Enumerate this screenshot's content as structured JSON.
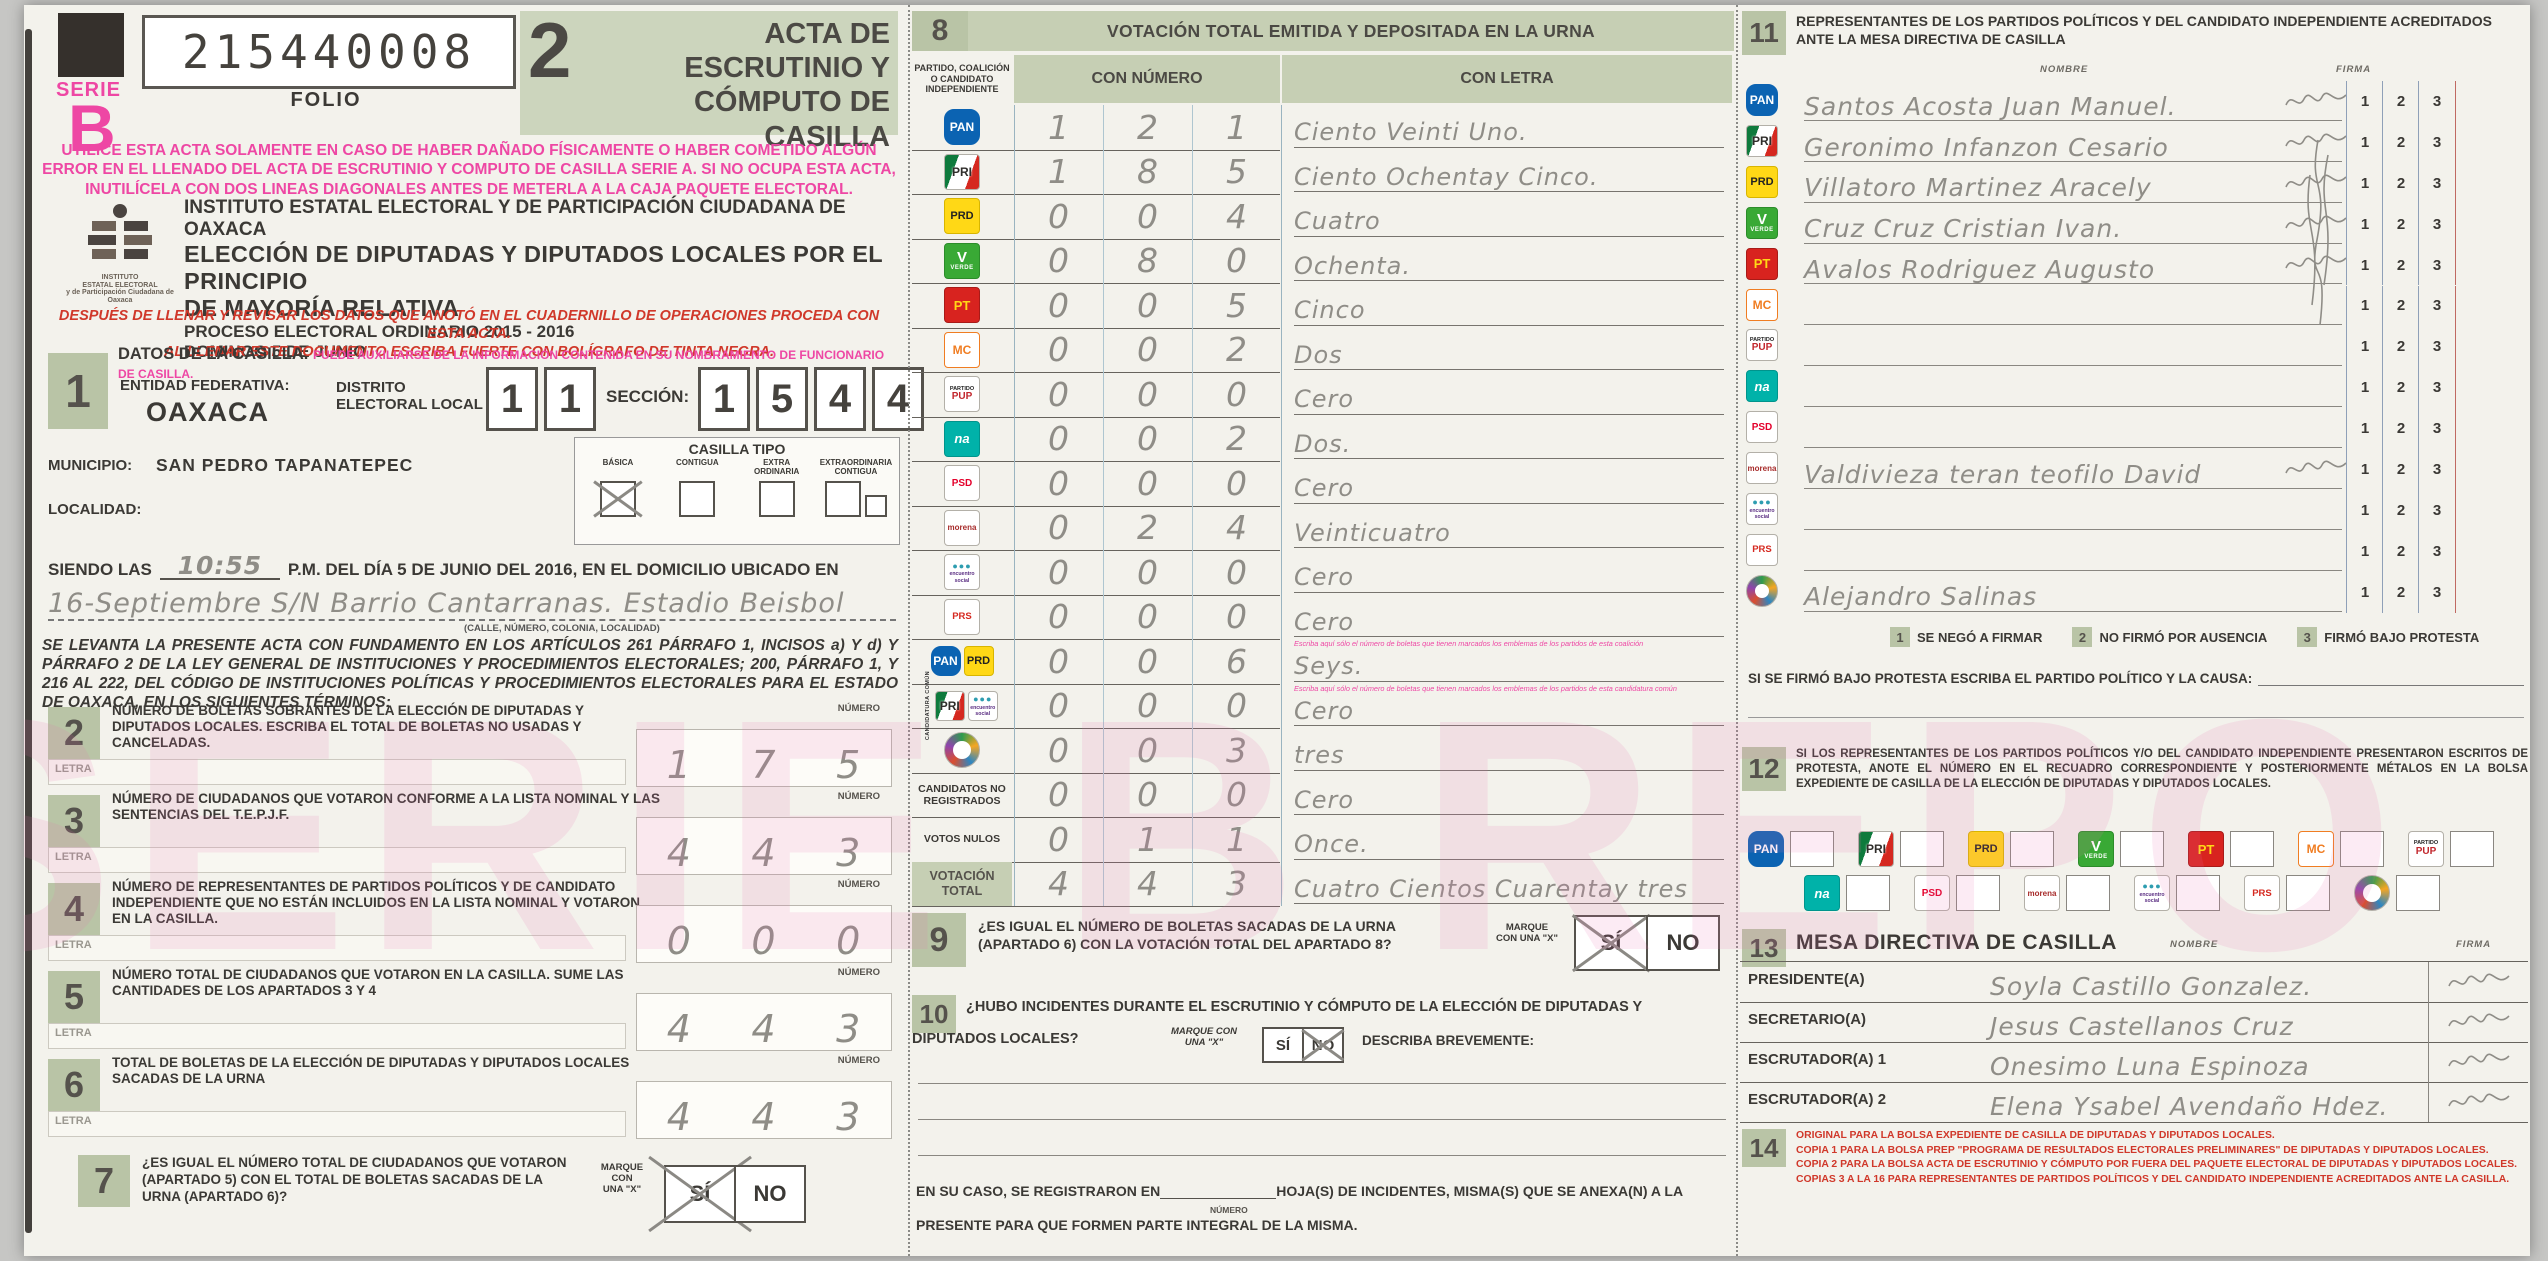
{
  "meta": {
    "serie_label": "SERIE",
    "serie_letter": "B",
    "folio_number": "215440008",
    "folio_label": "FOLIO",
    "form_number": "2",
    "form_title": "ACTA DE\nESCRUTINIO Y\nCÓMPUTO DE CASILLA",
    "watermark": "SERIE B REPO"
  },
  "warning_pink": "UTILICE ESTA ACTA SOLAMENTE EN CASO DE HABER DAÑADO FÍSICAMENTE O HABER COMETIDO ALGÚN ERROR EN EL LLENADO DEL ACTA DE ESCRUTINIO Y COMPUTO DE CASILLA SERIE A. SI NO OCUPA ESTA ACTA, INUTILÍCELA CON DOS LINEAS DIAGONALES ANTES DE METERLA A LA CAJA PAQUETE ELECTORAL.",
  "institute": {
    "logo_caption": "INSTITUTO\nESTATAL ELECTORAL\ny de Participación Ciudadana de Oaxaca",
    "name": "INSTITUTO ESTATAL ELECTORAL Y DE PARTICIPACIÓN CIUDADANA DE OAXACA",
    "election_line1": "ELECCIÓN DE DIPUTADAS Y DIPUTADOS LOCALES POR EL PRINCIPIO",
    "election_line2": "DE MAYORÍA RELATIVA",
    "process": "PROCESO ELECTORAL ORDINARIO 2015 - 2016",
    "date": "DOMINGO 5 DE JUNIO",
    "red_note1": "DESPUÉS DE LLENAR Y REVISAR LOS DATOS QUE ANOTÓ EN EL CUADERNILLO DE OPERACIONES PROCEDA CON ESTA ACTA.",
    "red_note2": "AL LLENAR ESTE DOCUMENTO ESCRIBA FUERTE CON BOLÍGRAFO DE TINTA NEGRA."
  },
  "labels": {
    "numero": "NÚMERO",
    "letra": "LETRA"
  },
  "section1": {
    "num": "1",
    "title": "DATOS DE LA CASILLA.",
    "title_pink": "PUEDE AUXILIARSE DE LA INFORMACIÓN CONTENIDA EN SU NOMBRAMIENTO DE FUNCIONARIO DE CASILLA.",
    "entidad_label": "ENTIDAD FEDERATIVA:",
    "entidad": "OAXACA",
    "distrito_label": "DISTRITO\nELECTORAL LOCAL",
    "distrito_digits": "11",
    "seccion_label": "SECCIÓN:",
    "seccion_digits": "1544",
    "municipio_label": "MUNICIPIO:",
    "municipio": "SAN PEDRO TAPANATEPEC",
    "casilla_tipo_label": "CASILLA TIPO",
    "tipos": [
      {
        "label": "BÁSICA",
        "marked": true
      },
      {
        "label": "CONTIGUA",
        "marked": false
      },
      {
        "label": "EXTRA ORDINARIA",
        "marked": false
      },
      {
        "label": "EXTRAORDINARIA CONTIGUA",
        "marked": false,
        "small": true
      }
    ],
    "localidad_label": "LOCALIDAD:"
  },
  "siendo": {
    "prefix": "SIENDO LAS",
    "time": "10:55",
    "suffix": "P.M. DEL DÍA 5 DE JUNIO DEL 2016, EN EL DOMICILIO UBICADO EN",
    "address": "16-Septiembre S/N Barrio Cantarranas. Estadio Beisbol",
    "address_caption": "(CALLE, NÚMERO, COLONIA, LOCALIDAD)"
  },
  "legal": "SE LEVANTA LA PRESENTE ACTA CON FUNDAMENTO EN LOS ARTÍCULOS 261 PÁRRAFO 1, INCISOS a) Y d) Y PÁRRAFO 2 DE LA LEY GENERAL DE INSTITUCIONES Y PROCEDIMIENTOS ELECTORALES; 200, PÁRRAFO 1, Y 216 AL 222,  DEL CÓDIGO DE INSTITUCIONES POLÍTICAS Y PROCEDIMIENTOS ELECTORALES PARA EL ESTADO DE OAXACA, EN LOS SIGUIENTES TÉRMINOS:",
  "apartados": [
    {
      "num": "2",
      "text": "NÚMERO DE BOLETAS SOBRANTES DE LA ELECCIÓN DE DIPUTADAS Y DIPUTADOS LOCALES. ESCRIBA EL TOTAL DE BOLETAS NO USADAS Y CANCELADAS.",
      "value": "175"
    },
    {
      "num": "3",
      "text": "NÚMERO DE CIUDADANOS QUE VOTARON CONFORME A LA LISTA NOMINAL Y LAS SENTENCIAS DEL T.E.P.J.F.",
      "value": "443"
    },
    {
      "num": "4",
      "text": "NÚMERO DE REPRESENTANTES DE PARTIDOS POLÍTICOS Y DE CANDIDATO INDEPENDIENTE QUE NO ESTÁN INCLUIDOS EN LA LISTA NOMINAL Y VOTARON EN LA CASILLA.",
      "value": "000"
    },
    {
      "num": "5",
      "text": "NÚMERO TOTAL DE CIUDADANOS QUE VOTARON EN LA CASILLA. SUME LAS CANTIDADES DE LOS APARTADOS 3 Y 4",
      "value": "443"
    },
    {
      "num": "6",
      "text": "TOTAL DE BOLETAS DE LA ELECCIÓN DE DIPUTADAS Y DIPUTADOS LOCALES SACADAS DE LA URNA",
      "value": "443"
    }
  ],
  "apartado7": {
    "num": "7",
    "text": "¿ES IGUAL EL NÚMERO TOTAL DE CIUDADANOS QUE VOTARON (APARTADO 5) CON EL TOTAL DE BOLETAS SACADAS DE LA URNA (APARTADO 6)?",
    "marque": "MARQUE\nCON\nUNA \"X\"",
    "yes": "SÍ",
    "no": "NO",
    "marked": "SÍ"
  },
  "section8": {
    "num": "8",
    "title": "VOTACIÓN TOTAL EMITIDA Y DEPOSITADA EN LA URNA",
    "col_party": "PARTIDO, COALICIÓN O CANDIDATO INDEPENDIENTE",
    "col_num": "CON NÚMERO",
    "col_letra": "CON LETRA",
    "candidatura_comun_label": "CANDIDATURA COMÚN",
    "rows": [
      {
        "party": "pan",
        "digits": "121",
        "letra": "Ciento Veinti Uno."
      },
      {
        "party": "pri",
        "digits": "185",
        "letra": "Ciento Ochentay Cinco."
      },
      {
        "party": "prd",
        "digits": "004",
        "letra": "Cuatro"
      },
      {
        "party": "verde",
        "digits": "080",
        "letra": "Ochenta."
      },
      {
        "party": "pt",
        "digits": "005",
        "letra": "Cinco"
      },
      {
        "party": "mc",
        "digits": "002",
        "letra": "Dos"
      },
      {
        "party": "pup",
        "digits": "000",
        "letra": "Cero"
      },
      {
        "party": "na",
        "digits": "002",
        "letra": "Dos."
      },
      {
        "party": "psd",
        "digits": "000",
        "letra": "Cero"
      },
      {
        "party": "morena",
        "digits": "024",
        "letra": "Veinticuatro"
      },
      {
        "party": "pes",
        "digits": "000",
        "letra": "Cero"
      },
      {
        "party": "prs",
        "digits": "000",
        "letra": "Cero"
      },
      {
        "party": "pan_prd",
        "digits": "006",
        "letra": "Seys.",
        "note": "Escriba aquí sólo el número de boletas que tienen marcados los emblemas de los partidos de esta coalición"
      },
      {
        "party": "pri_pes",
        "digits": "000",
        "letra": "Cero",
        "note": "Escriba aquí sólo el número de boletas que tienen marcados los emblemas de los partidos de esta candidatura común"
      },
      {
        "party": "ci",
        "digits": "003",
        "letra": "tres"
      },
      {
        "label": "CANDIDATOS NO REGISTRADOS",
        "digits": "000",
        "letra": "Cero"
      },
      {
        "label": "VOTOS NULOS",
        "digits": "011",
        "letra": "Once."
      },
      {
        "label": "VOTACIÓN TOTAL",
        "total": true,
        "digits": "443",
        "letra": "Cuatro Cientos Cuarentay tres"
      }
    ]
  },
  "section9": {
    "num": "9",
    "text": "¿ES IGUAL EL NÚMERO DE BOLETAS SACADAS DE LA URNA (APARTADO 6) CON LA VOTACIÓN TOTAL DEL APARTADO 8?",
    "marque": "MARQUE\nCON UNA \"X\"",
    "yes": "SÍ",
    "no": "NO",
    "marked": "SÍ"
  },
  "section10": {
    "num": "10",
    "q_line1": "¿HUBO INCIDENTES DURANTE EL ESCRUTINIO Y CÓMPUTO DE LA ELECCIÓN DE DIPUTADAS Y",
    "q_line2": "DIPUTADOS LOCALES?",
    "marque": "MARQUE CON\nUNA \"X\"",
    "yes": "SÍ",
    "no": "NO",
    "marked": "NO",
    "describe": "DESCRIBA BREVEMENTE:",
    "tail_prefix": "EN SU CASO, SE REGISTRARON EN",
    "tail_mid": "HOJA(S) DE INCIDENTES, MISMA(S) QUE SE ANEXA(N) A LA",
    "numero_caption": "NÚMERO",
    "tail_line2": "PRESENTE PARA QUE FORMEN PARTE INTEGRAL DE LA MISMA."
  },
  "section11": {
    "num": "11",
    "title": "REPRESENTANTES DE LOS PARTIDOS POLÍTICOS Y DEL CANDIDATO INDEPENDIENTE ACREDITADOS ANTE LA MESA DIRECTIVA DE CASILLA",
    "nombre_label": "NOMBRE",
    "firma_label": "FIRMA",
    "sig_cols": [
      "1",
      "2",
      "3"
    ],
    "rows": [
      {
        "party": "pan",
        "name": "Santos Acosta Juan Manuel.",
        "sig": true
      },
      {
        "party": "pri",
        "name": "Geronimo Infanzon Cesario",
        "sig": true
      },
      {
        "party": "prd",
        "name": "Villatoro Martinez Aracely",
        "sig": true
      },
      {
        "party": "verde",
        "name": "Cruz Cruz Cristian Ivan.",
        "sig": true
      },
      {
        "party": "pt",
        "name": "Avalos Rodriguez Augusto",
        "sig": true
      },
      {
        "party": "mc",
        "name": "",
        "sig": false
      },
      {
        "party": "pup",
        "name": "",
        "sig": false
      },
      {
        "party": "na",
        "name": "",
        "sig": false
      },
      {
        "party": "psd",
        "name": "",
        "sig": false
      },
      {
        "party": "morena",
        "name": "Valdivieza teran teofilo David",
        "sig": true
      },
      {
        "party": "pes",
        "name": "",
        "sig": false
      },
      {
        "party": "prs",
        "name": "",
        "sig": false
      },
      {
        "party": "ci",
        "name": "Alejandro Salinas",
        "sig": false
      }
    ],
    "legend": [
      {
        "num": "1",
        "text": "SE NEGÓ A FIRMAR"
      },
      {
        "num": "2",
        "text": "NO FIRMÓ POR AUSENCIA"
      },
      {
        "num": "3",
        "text": "FIRMÓ BAJO PROTESTA"
      }
    ],
    "protest_line": "SI SE FIRMÓ BAJO PROTESTA ESCRIBA EL PARTIDO POLÍTICO Y LA CAUSA:"
  },
  "section12": {
    "num": "12",
    "text": "SI LOS REPRESENTANTES DE LOS PARTIDOS POLÍTICOS Y/O DEL CANDIDATO INDEPENDIENTE PRESENTARON ESCRITOS DE PROTESTA, ANOTE EL NÚMERO EN EL RECUADRO CORRESPONDIENTE Y POSTERIORMENTE MÉTALOS EN LA BOLSA EXPEDIENTE DE CASILLA DE LA ELECCIÓN DE DIPUTADAS Y DIPUTADOS LOCALES.",
    "row1": [
      "pan",
      "pri",
      "prd",
      "verde",
      "pt",
      "mc",
      "pup"
    ],
    "row2": [
      "na",
      "psd",
      "morena",
      "pes",
      "prs",
      "ci"
    ]
  },
  "section13": {
    "num": "13",
    "title": "MESA DIRECTIVA DE CASILLA",
    "nombre_label": "NOMBRE",
    "firma_label": "FIRMA",
    "rows": [
      {
        "role": "PRESIDENTE(A)",
        "name": "Soyla Castillo Gonzalez.",
        "sig": true
      },
      {
        "role": "SECRETARIO(A)",
        "name": "Jesus Castellanos Cruz",
        "sig": true
      },
      {
        "role": "ESCRUTADOR(A) 1",
        "name": "Onesimo Luna Espinoza",
        "sig": true
      },
      {
        "role": "ESCRUTADOR(A) 2",
        "name": "Elena Ysabel Avendaño Hdez.",
        "sig": true
      }
    ]
  },
  "section14": {
    "num": "14",
    "lines": "ORIGINAL PARA LA BOLSA EXPEDIENTE DE CASILLA DE DIPUTADAS Y DIPUTADOS LOCALES.\nCOPIA 1 PARA LA BOLSA PREP \"PROGRAMA DE RESULTADOS ELECTORALES PRELIMINARES\" DE DIPUTADAS Y DIPUTADOS LOCALES.\nCOPIA 2 PARA LA BOLSA ACTA DE ESCRUTINIO Y CÓMPUTO POR FUERA DEL PAQUETE ELECTORAL DE DIPUTADAS Y DIPUTADOS LOCALES.\nCOPIAS 3 A LA 16 PARA REPRESENTANTES DE PARTIDOS POLÍTICOS Y DEL CANDIDATO INDEPENDIENTE ACREDITADOS ANTE LA CASILLA."
  },
  "parties": {
    "pan": {
      "abbr": "PAN"
    },
    "pri": {
      "abbr": "PRI"
    },
    "prd": {
      "abbr": "PRD"
    },
    "verde": {
      "abbr": "VERDE"
    },
    "pt": {
      "abbr": "PT"
    },
    "mc": {
      "abbr": "MC"
    },
    "pup": {
      "abbr": "PUP",
      "top": "PARTIDO"
    },
    "na": {
      "abbr": "na"
    },
    "psd": {
      "abbr": "PSD"
    },
    "morena": {
      "abbr": "morena"
    },
    "pes": {
      "abbr": "encuentro social",
      "dots": "●●●"
    },
    "prs": {
      "abbr": "PRS"
    },
    "ci": {
      "abbr": ""
    }
  },
  "colors": {
    "green_band": "#c6cfb4",
    "pink": "#ee47a4",
    "red": "#d0382a",
    "pencil": "#8f8d87"
  }
}
